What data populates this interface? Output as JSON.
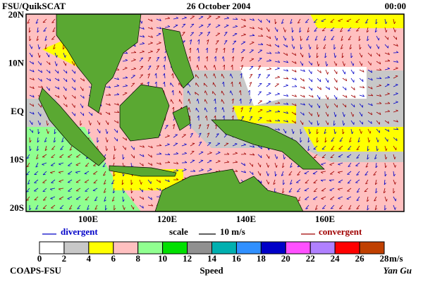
{
  "header": {
    "left": "FSU/QuikSCAT",
    "center": "26 October 2004",
    "right": "00:00"
  },
  "lat_labels": [
    "20N",
    "10N",
    "EQ",
    "10S",
    "20S"
  ],
  "lon_labels": [
    "100E",
    "120E",
    "140E",
    "160E"
  ],
  "legend": {
    "divergent": "divergent",
    "scale": "scale",
    "scale_value": "10 m/s",
    "convergent": "convergent"
  },
  "colorbar": {
    "ticks": [
      0,
      2,
      4,
      6,
      8,
      10,
      12,
      14,
      16,
      18,
      20,
      22,
      24,
      26,
      28
    ],
    "unit": "m/s",
    "label": "Speed",
    "colors": [
      "#ffffff",
      "#c8c8c8",
      "#ffff00",
      "#ffc0c0",
      "#90ff90",
      "#00e000",
      "#909090",
      "#00b0b0",
      "#3090ff",
      "#0000c8",
      "#ff50ff",
      "#b080ff",
      "#ff0000",
      "#c04000",
      "#000000"
    ]
  },
  "footer": {
    "left": "COAPS-FSU",
    "right": "Yan Gu"
  }
}
